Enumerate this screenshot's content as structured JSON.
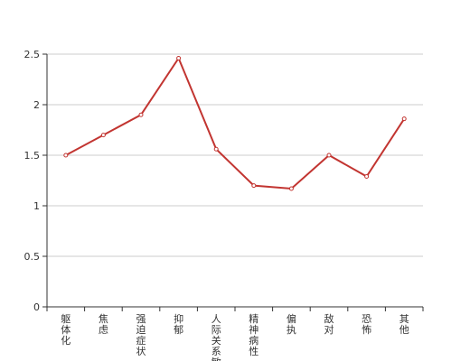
{
  "chart_data": {
    "type": "line",
    "categories": [
      "躯体化",
      "焦虑",
      "强迫症状",
      "抑郁",
      "人际关系敏感",
      "精神病性",
      "偏执",
      "敌对",
      "恐怖",
      "其他"
    ],
    "values": [
      1.5,
      1.7,
      1.9,
      2.46,
      1.56,
      1.2,
      1.17,
      1.5,
      1.29,
      1.86
    ],
    "color": "#c23531",
    "ylim": [
      0,
      2.5
    ],
    "yticks": [
      0,
      0.5,
      1,
      1.5,
      2,
      2.5
    ],
    "grid": true
  }
}
